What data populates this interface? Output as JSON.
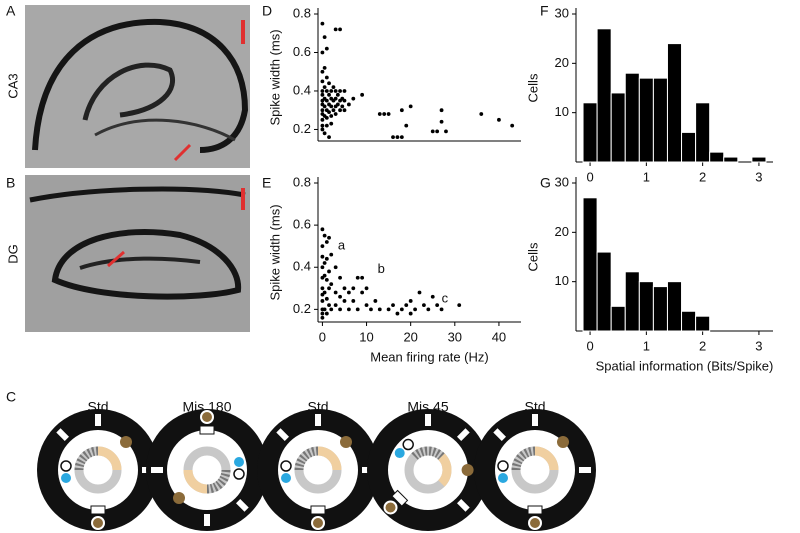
{
  "panel_labels": {
    "a": "A",
    "b": "B",
    "c": "C",
    "d": "D",
    "e": "E",
    "f": "F",
    "g": "G"
  },
  "image_labels": {
    "a": "CA3",
    "b": "DG"
  },
  "diagrams": {
    "titles": [
      "Std",
      "Mis 180",
      "Std",
      "Mis 45",
      "Std"
    ]
  },
  "chart_data": [
    {
      "type": "scatter",
      "ylabel": "Spike width (ms)",
      "color": "#000000",
      "x": [
        0,
        0,
        0,
        0,
        0,
        0,
        0,
        0,
        0,
        0,
        0,
        0,
        0,
        0.5,
        0.5,
        0.5,
        0.5,
        0.5,
        0.5,
        0.5,
        1,
        1,
        1,
        1,
        1,
        1,
        1,
        1.5,
        1.5,
        1.5,
        1.5,
        1.5,
        2,
        2,
        2,
        2,
        2,
        2.5,
        2.5,
        2.5,
        3,
        3,
        3,
        3,
        3,
        3.5,
        3.5,
        4,
        4,
        4,
        4,
        4.5,
        4.5,
        5,
        5,
        5,
        6,
        7,
        9,
        13,
        14,
        15,
        16,
        17,
        18,
        18,
        19,
        20,
        25,
        26,
        27,
        27,
        28,
        36,
        40,
        43
      ],
      "y": [
        0.75,
        0.6,
        0.5,
        0.45,
        0.4,
        0.38,
        0.35,
        0.33,
        0.3,
        0.28,
        0.25,
        0.22,
        0.2,
        0.68,
        0.52,
        0.42,
        0.36,
        0.32,
        0.27,
        0.18,
        0.62,
        0.47,
        0.4,
        0.35,
        0.3,
        0.26,
        0.22,
        0.44,
        0.38,
        0.33,
        0.29,
        0.16,
        0.4,
        0.36,
        0.32,
        0.27,
        0.23,
        0.42,
        0.35,
        0.3,
        0.72,
        0.4,
        0.36,
        0.32,
        0.28,
        0.38,
        0.33,
        0.72,
        0.4,
        0.35,
        0.3,
        0.36,
        0.32,
        0.4,
        0.35,
        0.3,
        0.33,
        0.36,
        0.38,
        0.28,
        0.28,
        0.28,
        0.16,
        0.16,
        0.16,
        0.3,
        0.22,
        0.32,
        0.19,
        0.19,
        0.3,
        0.24,
        0.19,
        0.28,
        0.25,
        0.22
      ],
      "xlim": [
        -1,
        45
      ],
      "ylim": [
        0.14,
        0.8
      ],
      "yticks": [
        0.2,
        0.4,
        0.6,
        0.8
      ]
    },
    {
      "type": "scatter",
      "ylabel": "Spike width (ms)",
      "xlabel": "Mean firing rate  (Hz)",
      "color": "#000000",
      "x": [
        0,
        0,
        0,
        0,
        0,
        0,
        0,
        0,
        0,
        0,
        0,
        0.5,
        0.5,
        0.5,
        0.5,
        0.5,
        1,
        1,
        1,
        1,
        1,
        1.5,
        1.5,
        1.5,
        1.5,
        2,
        2,
        2,
        3,
        3,
        3,
        4,
        4,
        4,
        5,
        5,
        6,
        6,
        7,
        7,
        8,
        8,
        9,
        9,
        10,
        10,
        11,
        12,
        13,
        15,
        16,
        17,
        18,
        19,
        20,
        20,
        21,
        22,
        23,
        24,
        25,
        26,
        27,
        31
      ],
      "y": [
        0.58,
        0.5,
        0.45,
        0.4,
        0.35,
        0.3,
        0.27,
        0.24,
        0.2,
        0.18,
        0.16,
        0.55,
        0.42,
        0.36,
        0.28,
        0.2,
        0.52,
        0.44,
        0.34,
        0.25,
        0.18,
        0.54,
        0.38,
        0.3,
        0.22,
        0.46,
        0.32,
        0.2,
        0.4,
        0.28,
        0.22,
        0.35,
        0.26,
        0.2,
        0.3,
        0.24,
        0.28,
        0.2,
        0.3,
        0.24,
        0.35,
        0.2,
        0.28,
        0.35,
        0.3,
        0.22,
        0.2,
        0.24,
        0.2,
        0.2,
        0.22,
        0.18,
        0.2,
        0.22,
        0.18,
        0.24,
        0.2,
        0.28,
        0.22,
        0.2,
        0.26,
        0.22,
        0.2,
        0.22
      ],
      "annotations": [
        {
          "text": "a",
          "x": 3.5,
          "y": 0.5
        },
        {
          "text": "b",
          "x": 12.5,
          "y": 0.39
        },
        {
          "text": "c",
          "x": 27,
          "y": 0.25
        }
      ],
      "xlim": [
        -1,
        45
      ],
      "ylim": [
        0.14,
        0.8
      ],
      "xticks": [
        0,
        10,
        20,
        30,
        40
      ],
      "yticks": [
        0.2,
        0.4,
        0.6,
        0.8
      ]
    },
    {
      "type": "histogram",
      "ylabel": "Cells",
      "color": "#000000",
      "bins": [
        -0.125,
        0.125,
        0.375,
        0.625,
        0.875,
        1.125,
        1.375,
        1.625,
        1.875,
        2.125,
        2.375,
        2.625,
        2.875,
        3.125
      ],
      "values": [
        12,
        27,
        14,
        18,
        17,
        17,
        24,
        6,
        12,
        2,
        1,
        0,
        1
      ],
      "xlim": [
        -0.25,
        3.25
      ],
      "ylim": [
        0,
        30
      ],
      "xticks": [
        0,
        1,
        2,
        3
      ],
      "yticks": [
        10,
        20,
        30
      ]
    },
    {
      "type": "histogram",
      "ylabel": "Cells",
      "xlabel": "Spatial information (Bits/Spike)",
      "color": "#000000",
      "bins": [
        -0.125,
        0.125,
        0.375,
        0.625,
        0.875,
        1.125,
        1.375,
        1.625,
        1.875,
        2.125
      ],
      "values": [
        27,
        16,
        5,
        12,
        10,
        9,
        10,
        4,
        3
      ],
      "xlim": [
        -0.25,
        3.25
      ],
      "ylim": [
        0,
        30
      ],
      "xticks": [
        0,
        1,
        2,
        3
      ],
      "yticks": [
        10,
        20,
        30
      ]
    }
  ]
}
